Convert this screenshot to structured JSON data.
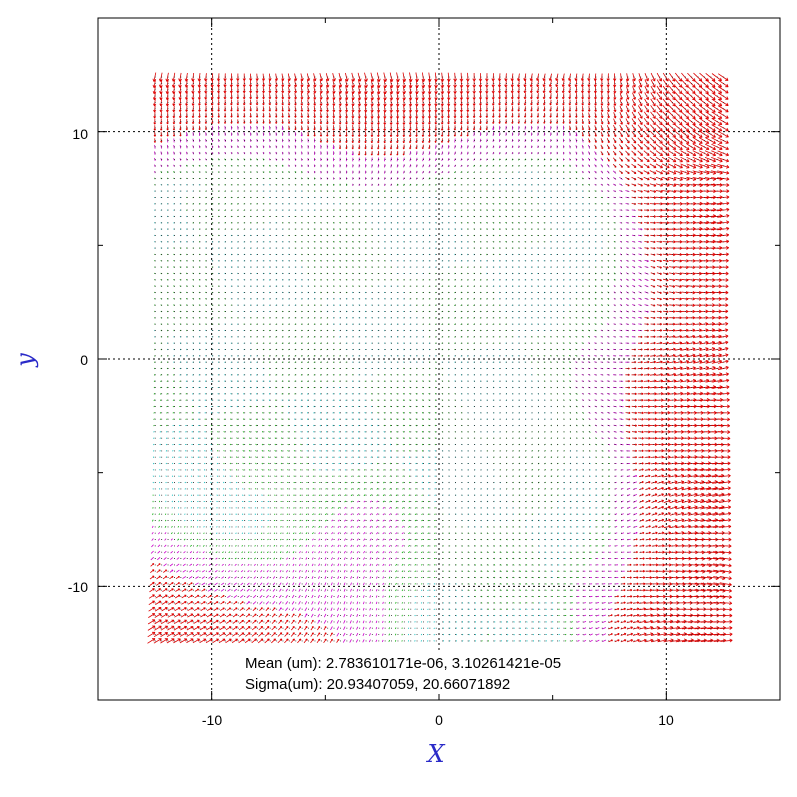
{
  "chart_data": {
    "type": "quiver",
    "xlabel": "X",
    "ylabel": "y",
    "xlim": [
      -15,
      15
    ],
    "ylim": [
      -15,
      15
    ],
    "grid": true,
    "x_ticks": [
      -10,
      0,
      10
    ],
    "y_ticks": [
      10,
      0,
      -10
    ],
    "x_tick_labels": [
      "-10",
      "0",
      "10"
    ],
    "y_tick_labels": [
      "10",
      "0",
      "-10"
    ],
    "field_extent": {
      "x": [
        -12.5,
        12.5
      ],
      "y": [
        -12.4,
        12.4
      ]
    },
    "grid_points_per_axis": 90,
    "vector_colors": {
      "large": "#dd0000",
      "medium": "#cc00cc",
      "small": "#00aa00",
      "tiny": "#00bbbb"
    },
    "stats": {
      "mean_line": "Mean (um): 2.783610171e-06, 3.10261421e-05",
      "sigma_line": "Sigma(um): 20.93407059, 20.66071892"
    }
  }
}
